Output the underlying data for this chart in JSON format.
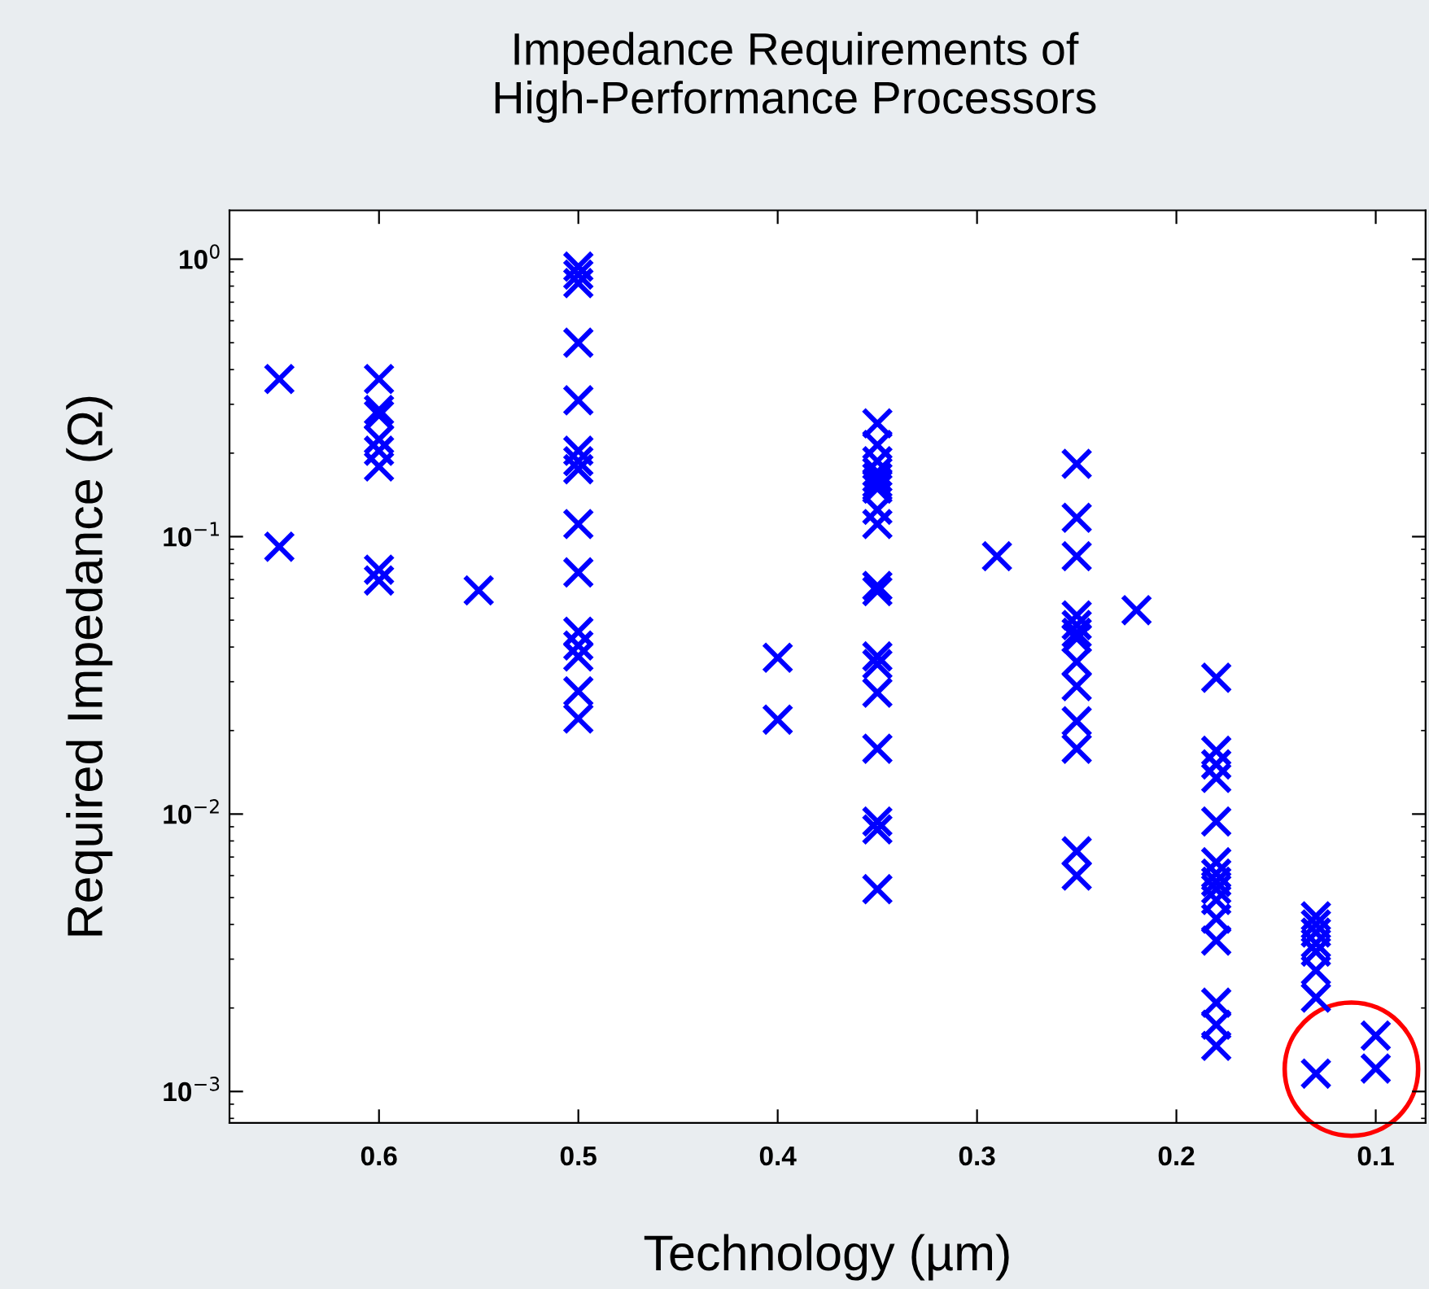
{
  "chart_data": {
    "type": "scatter",
    "title": "Impedance Requirements of\nHigh-Performance Processors",
    "xlabel": "Technology (µm)",
    "ylabel": "Required Impedance (Ω)",
    "log": "y",
    "marker": "cross",
    "grid": false,
    "xlim": [
      0.675,
      0.075
    ],
    "xticks": [
      0.6,
      0.5,
      0.4,
      0.3,
      0.2,
      0.1
    ],
    "ylim": [
      0.00077,
      1.5
    ],
    "yticks": [
      {
        "value": 1,
        "label": "10$^{0}$"
      },
      {
        "value": 0.1,
        "label": "10$^{−1}$"
      },
      {
        "value": 0.01,
        "label": "10$^{−2}$"
      },
      {
        "value": 0.001,
        "label": "10$^{−3}$"
      }
    ],
    "series": [
      {
        "color": "#0000ff",
        "x": [
          0.65,
          0.65,
          0.6,
          0.6,
          0.6,
          0.6,
          0.6,
          0.6,
          0.6,
          0.6,
          0.55,
          0.5,
          0.5,
          0.5,
          0.5,
          0.5,
          0.5,
          0.5,
          0.5,
          0.5,
          0.5,
          0.5,
          0.5,
          0.5,
          0.5,
          0.5,
          0.4,
          0.4,
          0.35,
          0.35,
          0.35,
          0.35,
          0.35,
          0.35,
          0.35,
          0.35,
          0.35,
          0.35,
          0.35,
          0.35,
          0.35,
          0.35,
          0.35,
          0.35,
          0.35,
          0.35,
          0.29,
          0.25,
          0.25,
          0.25,
          0.25,
          0.25,
          0.25,
          0.25,
          0.25,
          0.25,
          0.25,
          0.25,
          0.25,
          0.25,
          0.22,
          0.18,
          0.18,
          0.18,
          0.18,
          0.18,
          0.18,
          0.18,
          0.18,
          0.18,
          0.18,
          0.18,
          0.18,
          0.18,
          0.18,
          0.18,
          0.13,
          0.13,
          0.13,
          0.13,
          0.13,
          0.13,
          0.13,
          0.13,
          0.1,
          0.1
        ],
        "values": [
          0.37,
          0.092,
          0.37,
          0.286,
          0.274,
          0.224,
          0.204,
          0.179,
          0.076,
          0.0695,
          0.064,
          0.94,
          0.88,
          0.82,
          0.5,
          0.31,
          0.204,
          0.187,
          0.175,
          0.111,
          0.0743,
          0.0454,
          0.0405,
          0.037,
          0.0277,
          0.0221,
          0.0366,
          0.0219,
          0.256,
          0.214,
          0.187,
          0.171,
          0.163,
          0.156,
          0.149,
          0.125,
          0.111,
          0.0664,
          0.0636,
          0.037,
          0.0347,
          0.0274,
          0.0172,
          0.0094,
          0.0088,
          0.00536,
          0.085,
          0.183,
          0.117,
          0.085,
          0.052,
          0.048,
          0.045,
          0.043,
          0.0354,
          0.0289,
          0.0216,
          0.0172,
          0.00734,
          0.006,
          0.0543,
          0.031,
          0.0169,
          0.0151,
          0.0135,
          0.0094,
          0.0067,
          0.0061,
          0.0057,
          0.00536,
          0.0049,
          0.0042,
          0.0035,
          0.00209,
          0.00174,
          0.00146,
          0.00428,
          0.004,
          0.00374,
          0.00342,
          0.00319,
          0.00273,
          0.00218,
          0.00116,
          0.00159,
          0.00121
        ]
      }
    ]
  }
}
